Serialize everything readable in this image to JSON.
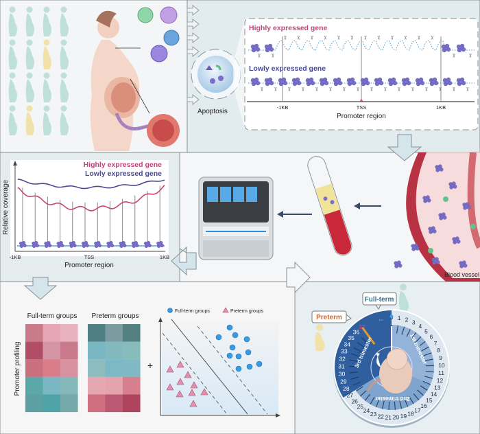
{
  "top_right": {
    "apoptosis_label": "Apoptosis",
    "high_gene_label": "Highly expressed gene",
    "low_gene_label": "Lowly expressed gene",
    "tick_minus": "-1KB",
    "tick_tss": "TSS",
    "tick_plus": "1KB",
    "axis_label": "Promoter region"
  },
  "coverage_plot": {
    "y_label": "Relative coverage",
    "x_label": "Promoter region",
    "tick_minus": "-1KB",
    "tick_tss": "TSS",
    "tick_plus": "1KB",
    "legend_high": "Highly expressed gene",
    "legend_low": "Lowly expressed gene"
  },
  "blood": {
    "label": "Blood vessel"
  },
  "profiling": {
    "side_label": "Promoter profiling",
    "fullterm_title": "Full-term groups",
    "preterm_title": "Preterm groups",
    "plus": "+",
    "legend_fullterm": "Full-term groups",
    "legend_preterm": "Preterm groups",
    "heatmap_fullterm": [
      [
        "#c97b8a",
        "#e6a5b3",
        "#e9b3bd"
      ],
      [
        "#b24d66",
        "#d495a5",
        "#c87a8b"
      ],
      [
        "#c9707f",
        "#d97d8a",
        "#d8929f"
      ],
      [
        "#5aa8a8",
        "#7bb6c3",
        "#84b8b9"
      ],
      [
        "#5e9fa4",
        "#4ea3a7",
        "#74a8a9"
      ]
    ],
    "heatmap_preterm": [
      [
        "#4f7f82",
        "#7a9ca0",
        "#537f80"
      ],
      [
        "#7ab7c2",
        "#81b9bf",
        "#88bcbc"
      ],
      [
        "#8ebdc0",
        "#7cb8c6",
        "#80b8c4"
      ],
      [
        "#e5a8b1",
        "#e5a3ae",
        "#d77f8c"
      ],
      [
        "#cf6f80",
        "#bb5a72",
        "#ae445d"
      ]
    ]
  },
  "clock": {
    "fullterm_label": "Full-term",
    "preterm_label": "Preterm",
    "trimester_1": "1st trimester",
    "trimester_2": "2nd trimester",
    "trimester_3": "3rd trimester",
    "weeks": [
      "0",
      "1",
      "2",
      "3",
      "4",
      "5",
      "6",
      "7",
      "8",
      "9",
      "10",
      "11",
      "12",
      "13",
      "14",
      "15",
      "16",
      "17",
      "18",
      "19",
      "20",
      "21",
      "22",
      "23",
      "24",
      "25",
      "26",
      "27",
      "28",
      "29",
      "30",
      "31",
      "32",
      "33",
      "34",
      "35",
      "36",
      "37"
    ],
    "ellipsis": "...",
    "highlight_week": "37"
  },
  "colors": {
    "high_gene": "#c2457a",
    "low_gene": "#4a4898",
    "fullterm": "#3d6f86",
    "preterm": "#c8693c",
    "third_trimester": "#2f5f9e",
    "first_trimester": "#93b4d8",
    "second_trimester": "#7fa5cf",
    "nucleosome": "#7a6fc8",
    "mint_figure": "#bfe0d6",
    "yellow_figure": "#f0e2aa"
  }
}
